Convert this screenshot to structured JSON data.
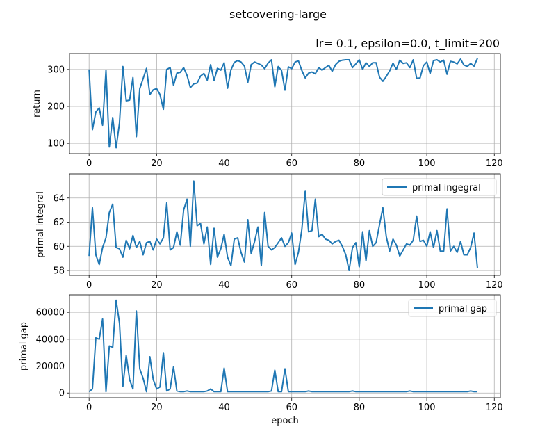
{
  "figure": {
    "suptitle": "setcovering-large",
    "subtitle": "lr= 0.1, epsilon=0.0, t_limit=200",
    "line_color": "#1f77b4"
  },
  "chart_data": [
    {
      "type": "line",
      "xlabel": "",
      "ylabel": "return",
      "xlim": [
        -5.8,
        121.8
      ],
      "ylim": [
        72,
        343
      ],
      "xticks": [
        0,
        20,
        40,
        60,
        80,
        100,
        120
      ],
      "yticks": [
        100,
        200,
        300
      ],
      "grid": true,
      "legend": null,
      "series": [
        {
          "name": "",
          "x": [
            0,
            1,
            2,
            3,
            4,
            5,
            6,
            7,
            8,
            9,
            10,
            11,
            12,
            13,
            14,
            15,
            16,
            17,
            18,
            19,
            20,
            21,
            22,
            23,
            24,
            25,
            26,
            27,
            28,
            29,
            30,
            31,
            32,
            33,
            34,
            35,
            36,
            37,
            38,
            39,
            40,
            41,
            42,
            43,
            44,
            45,
            46,
            47,
            48,
            49,
            50,
            51,
            52,
            53,
            54,
            55,
            56,
            57,
            58,
            59,
            60,
            61,
            62,
            63,
            64,
            65,
            66,
            67,
            68,
            69,
            70,
            71,
            72,
            73,
            74,
            75,
            76,
            77,
            78,
            79,
            80,
            81,
            82,
            83,
            84,
            85,
            86,
            87,
            88,
            89,
            90,
            91,
            92,
            93,
            94,
            95,
            96,
            97,
            98,
            99,
            100,
            101,
            102,
            103,
            104,
            105,
            106,
            107,
            108,
            109,
            110,
            111,
            112,
            113,
            114,
            115
          ],
          "values": [
            300,
            137,
            185,
            196,
            149,
            298,
            90,
            170,
            88,
            155,
            308,
            215,
            217,
            278,
            118,
            248,
            275,
            303,
            232,
            245,
            248,
            232,
            192,
            300,
            305,
            257,
            290,
            292,
            305,
            284,
            251,
            261,
            263,
            282,
            289,
            271,
            313,
            270,
            303,
            298,
            318,
            249,
            299,
            319,
            324,
            320,
            309,
            265,
            313,
            320,
            316,
            312,
            302,
            317,
            326,
            253,
            308,
            297,
            244,
            307,
            302,
            320,
            323,
            297,
            277,
            290,
            293,
            288,
            305,
            298,
            305,
            311,
            295,
            313,
            322,
            325,
            326,
            326,
            305,
            315,
            326,
            300,
            318,
            308,
            318,
            318,
            279,
            268,
            281,
            296,
            317,
            300,
            325,
            316,
            318,
            305,
            326,
            276,
            277,
            310,
            320,
            289,
            324,
            326,
            320,
            325,
            287,
            322,
            320,
            315,
            328,
            312,
            308,
            316,
            309,
            330
          ]
        }
      ]
    },
    {
      "type": "line",
      "xlabel": "",
      "ylabel": "primal integral",
      "xlim": [
        -5.8,
        121.8
      ],
      "ylim": [
        57.6,
        66.0
      ],
      "xticks": [
        0,
        20,
        40,
        60,
        80,
        100,
        120
      ],
      "yticks": [
        58,
        60,
        62,
        64
      ],
      "grid": true,
      "legend": "upper right",
      "series": [
        {
          "name": "primal ingegral",
          "x": [
            0,
            1,
            2,
            3,
            4,
            5,
            6,
            7,
            8,
            9,
            10,
            11,
            12,
            13,
            14,
            15,
            16,
            17,
            18,
            19,
            20,
            21,
            22,
            23,
            24,
            25,
            26,
            27,
            28,
            29,
            30,
            31,
            32,
            33,
            34,
            35,
            36,
            37,
            38,
            39,
            40,
            41,
            42,
            43,
            44,
            45,
            46,
            47,
            48,
            49,
            50,
            51,
            52,
            53,
            54,
            55,
            56,
            57,
            58,
            59,
            60,
            61,
            62,
            63,
            64,
            65,
            66,
            67,
            68,
            69,
            70,
            71,
            72,
            73,
            74,
            75,
            76,
            77,
            78,
            79,
            80,
            81,
            82,
            83,
            84,
            85,
            86,
            87,
            88,
            89,
            90,
            91,
            92,
            93,
            94,
            95,
            96,
            97,
            98,
            99,
            100,
            101,
            102,
            103,
            104,
            105,
            106,
            107,
            108,
            109,
            110,
            111,
            112,
            113,
            114,
            115
          ],
          "values": [
            59.2,
            63.2,
            59.3,
            58.5,
            59.9,
            60.7,
            62.8,
            63.5,
            59.9,
            59.8,
            59.1,
            60.5,
            59.8,
            60.9,
            59.9,
            60.4,
            59.3,
            60.3,
            60.4,
            59.7,
            60.6,
            60.2,
            60.7,
            63.6,
            59.7,
            59.9,
            61.2,
            60.1,
            63.0,
            63.9,
            60.0,
            65.4,
            61.7,
            61.9,
            60.2,
            61.6,
            58.5,
            61.5,
            59.1,
            59.8,
            61.0,
            59.1,
            58.4,
            60.6,
            60.7,
            59.5,
            58.7,
            62.2,
            59.4,
            60.4,
            61.6,
            58.4,
            62.8,
            60.0,
            59.7,
            59.9,
            60.3,
            60.7,
            60.0,
            60.3,
            61.1,
            58.5,
            59.5,
            61.4,
            64.6,
            61.2,
            61.3,
            63.9,
            60.8,
            61.0,
            60.6,
            60.5,
            60.2,
            60.4,
            60.5,
            60.0,
            59.3,
            58.0,
            59.9,
            60.3,
            58.3,
            61.2,
            58.8,
            61.3,
            60.0,
            60.3,
            61.8,
            63.2,
            60.8,
            59.6,
            60.6,
            60.1,
            59.2,
            59.7,
            60.2,
            60.1,
            60.5,
            62.5,
            60.4,
            60.5,
            60.0,
            61.2,
            59.9,
            61.3,
            59.6,
            59.6,
            63.1,
            59.6,
            60.0,
            59.5,
            60.4,
            59.3,
            59.3,
            59.9,
            61.1,
            58.2
          ]
        }
      ]
    },
    {
      "type": "line",
      "xlabel": "epoch",
      "ylabel": "primal gap",
      "xlim": [
        -5.8,
        121.8
      ],
      "ylim": [
        -3500,
        73000
      ],
      "xticks": [
        0,
        20,
        40,
        60,
        80,
        100,
        120
      ],
      "yticks": [
        0,
        20000,
        40000,
        60000
      ],
      "grid": true,
      "legend": "upper right",
      "series": [
        {
          "name": "primal gap",
          "x": [
            0,
            1,
            2,
            3,
            4,
            5,
            6,
            7,
            8,
            9,
            10,
            11,
            12,
            13,
            14,
            15,
            16,
            17,
            18,
            19,
            20,
            21,
            22,
            23,
            24,
            25,
            26,
            27,
            28,
            29,
            30,
            31,
            32,
            33,
            34,
            35,
            36,
            37,
            38,
            39,
            40,
            41,
            42,
            43,
            44,
            45,
            46,
            47,
            48,
            49,
            50,
            51,
            52,
            53,
            54,
            55,
            56,
            57,
            58,
            59,
            60,
            61,
            62,
            63,
            64,
            65,
            66,
            67,
            68,
            69,
            70,
            71,
            72,
            73,
            74,
            75,
            76,
            77,
            78,
            79,
            80,
            81,
            82,
            83,
            84,
            85,
            86,
            87,
            88,
            89,
            90,
            91,
            92,
            93,
            94,
            95,
            96,
            97,
            98,
            99,
            100,
            101,
            102,
            103,
            104,
            105,
            106,
            107,
            108,
            109,
            110,
            111,
            112,
            113,
            114,
            115
          ],
          "values": [
            1000,
            3000,
            41000,
            40000,
            55000,
            1000,
            35000,
            34000,
            69000,
            52000,
            5000,
            28000,
            10000,
            3000,
            61000,
            18000,
            11000,
            1000,
            27000,
            10000,
            3000,
            4500,
            30000,
            1500,
            3000,
            19500,
            1500,
            1000,
            1000,
            1500,
            1000,
            1000,
            1000,
            1000,
            1000,
            1500,
            3000,
            1000,
            1000,
            1000,
            18500,
            1000,
            1000,
            1000,
            1000,
            1000,
            1000,
            1000,
            1000,
            1000,
            1000,
            1000,
            1000,
            1000,
            1500,
            17000,
            1000,
            1000,
            18000,
            1000,
            1000,
            1000,
            1000,
            1000,
            1000,
            1500,
            1000,
            1000,
            1000,
            1000,
            1000,
            1000,
            1000,
            1000,
            1000,
            1000,
            1000,
            1000,
            1500,
            1000,
            1000,
            1000,
            1000,
            1000,
            1000,
            1000,
            1000,
            1000,
            1000,
            1000,
            1000,
            1000,
            1000,
            1000,
            1000,
            1500,
            1000,
            1000,
            1000,
            1000,
            1000,
            1000,
            1000,
            1000,
            1000,
            1000,
            1000,
            1000,
            1000,
            1000,
            1000,
            1000,
            1000,
            1500,
            1000,
            1000
          ]
        }
      ]
    }
  ]
}
